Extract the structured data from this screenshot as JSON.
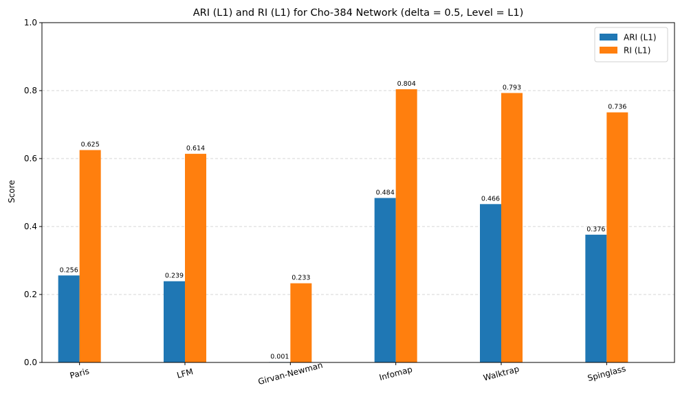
{
  "chart_data": {
    "type": "bar",
    "title": "ARI (L1) and RI (L1) for Cho-384 Network (delta = 0.5, Level = L1)",
    "xlabel": "",
    "ylabel": "Score",
    "ylim": [
      0,
      1.0
    ],
    "yticks": [
      "0.0",
      "0.2",
      "0.4",
      "0.6",
      "0.8",
      "1.0"
    ],
    "grid": "y-dashed",
    "legend_position": "top-right",
    "categories": [
      "Paris",
      "LFM",
      "Girvan-Newman",
      "Infomap",
      "Walktrap",
      "Spinglass"
    ],
    "series": [
      {
        "name": "ARI (L1)",
        "color": "#1f77b4",
        "values": [
          0.256,
          0.239,
          0.001,
          0.484,
          0.466,
          0.376
        ],
        "labels": [
          "0.256",
          "0.239",
          "0.001",
          "0.484",
          "0.466",
          "0.376"
        ]
      },
      {
        "name": "RI (L1)",
        "color": "#ff7f0e",
        "values": [
          0.625,
          0.614,
          0.233,
          0.804,
          0.793,
          0.736
        ],
        "labels": [
          "0.625",
          "0.614",
          "0.233",
          "0.804",
          "0.793",
          "0.736"
        ]
      }
    ]
  }
}
